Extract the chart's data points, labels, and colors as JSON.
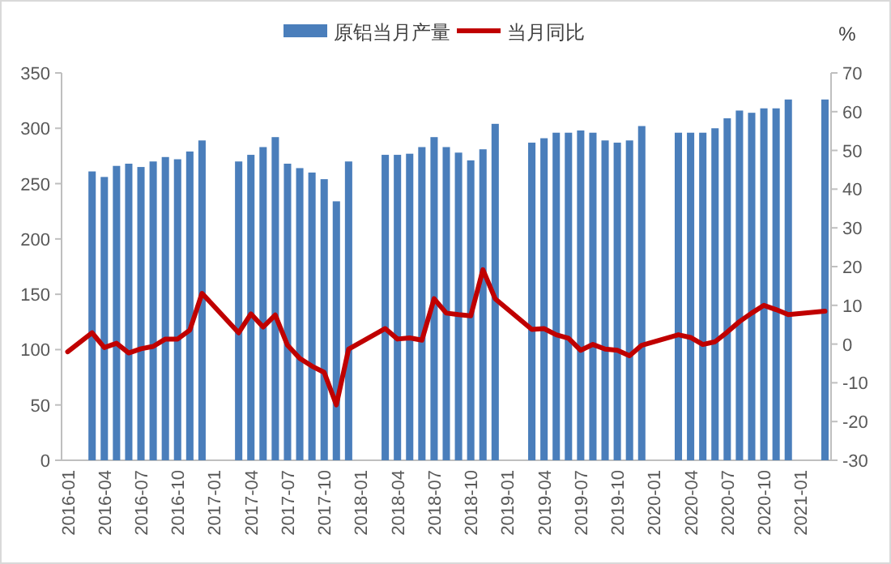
{
  "chart_data": {
    "type": "bar",
    "categories": [
      "2016-01",
      null,
      null,
      "2016-04",
      null,
      null,
      "2016-07",
      null,
      null,
      "2016-10",
      null,
      null,
      "2017-01",
      null,
      null,
      "2017-04",
      null,
      null,
      "2017-07",
      null,
      null,
      "2017-10",
      null,
      null,
      "2018-01",
      null,
      null,
      "2018-04",
      null,
      null,
      "2018-07",
      null,
      null,
      "2018-10",
      null,
      null,
      "2019-01",
      null,
      null,
      "2019-04",
      null,
      null,
      "2019-07",
      null,
      null,
      "2019-10",
      null,
      null,
      "2020-01",
      null,
      null,
      "2020-04",
      null,
      null,
      "2020-07",
      null,
      null,
      "2020-10",
      null,
      null,
      "2021-01",
      null,
      null
    ],
    "series": [
      {
        "name": "原铝当月产量",
        "color": "#4a7ebb",
        "values": [
          null,
          null,
          261,
          256,
          266,
          268,
          265,
          270,
          274,
          272,
          279,
          289,
          null,
          null,
          270,
          276,
          283,
          292,
          268,
          264,
          260,
          254,
          234,
          270,
          null,
          null,
          276,
          276,
          277,
          283,
          292,
          283,
          278,
          271,
          281,
          304,
          null,
          null,
          287,
          291,
          296,
          296,
          298,
          296,
          289,
          287,
          289,
          302,
          null,
          null,
          296,
          296,
          296,
          300,
          309,
          316,
          314,
          318,
          318,
          326,
          null,
          null,
          326
        ]
      },
      {
        "name": "当月同比",
        "type": "line",
        "axis": "y2",
        "color": "#c00000",
        "values": [
          -2.0,
          null,
          2.9,
          -0.9,
          0.2,
          -2.3,
          -1.2,
          -0.6,
          1.3,
          1.3,
          3.6,
          13.1,
          null,
          null,
          2.9,
          7.8,
          4.4,
          7.5,
          -0.3,
          -3.7,
          -5.7,
          -7.3,
          -15.7,
          -1.3,
          null,
          null,
          4.0,
          1.3,
          1.6,
          1.0,
          11.7,
          8.0,
          7.6,
          7.3,
          19.2,
          11.7,
          null,
          null,
          3.8,
          4.0,
          2.4,
          1.5,
          -1.6,
          -0.1,
          -1.3,
          -1.6,
          -3.0,
          -0.3,
          null,
          null,
          2.4,
          1.7,
          -0.1,
          0.6,
          3.1,
          5.8,
          8.0,
          10.0,
          8.9,
          7.6,
          null,
          null,
          8.5
        ]
      }
    ],
    "ylim": [
      0,
      350
    ],
    "yticks": [
      0,
      50,
      100,
      150,
      200,
      250,
      300,
      350
    ],
    "y2lim": [
      -30,
      70
    ],
    "y2ticks": [
      -30,
      -20,
      -10,
      0,
      10,
      20,
      30,
      40,
      50,
      60,
      70
    ],
    "y2label": "%",
    "legend": "top"
  }
}
